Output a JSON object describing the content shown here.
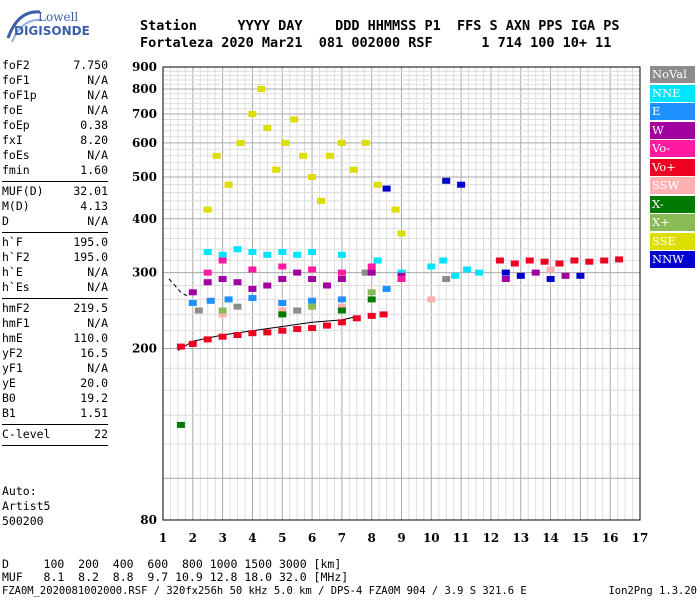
{
  "logo": {
    "brand": "Lowell",
    "name": "DIGISONDE"
  },
  "header": {
    "labels_line": "Station     YYYY DAY    DDD HHMMSS P1  FFS S AXN PPS IGA PS",
    "values_line": "Fortaleza 2020 Mar21  081 002000 RSF      1 714 100 10+ 11"
  },
  "params_group1": [
    {
      "label": "foF2",
      "value": "7.750"
    },
    {
      "label": "foF1",
      "value": "N/A"
    },
    {
      "label": "foF1p",
      "value": "N/A"
    },
    {
      "label": "foE",
      "value": "N/A"
    },
    {
      "label": "foEp",
      "value": "0.38"
    },
    {
      "label": "fxI",
      "value": "8.20"
    },
    {
      "label": "foEs",
      "value": "N/A"
    },
    {
      "label": "fmin",
      "value": "1.60"
    }
  ],
  "params_group2": [
    {
      "label": "MUF(D)",
      "value": "32.01"
    },
    {
      "label": "M(D)",
      "value": "4.13"
    },
    {
      "label": "D",
      "value": "N/A"
    }
  ],
  "params_group3": [
    {
      "label": "h`F",
      "value": "195.0"
    },
    {
      "label": "h`F2",
      "value": "195.0"
    },
    {
      "label": "h`E",
      "value": "N/A"
    },
    {
      "label": "h`Es",
      "value": "N/A"
    }
  ],
  "params_group4": [
    {
      "label": "hmF2",
      "value": "219.5"
    },
    {
      "label": "hmF1",
      "value": "N/A"
    },
    {
      "label": "hmE",
      "value": "110.0"
    },
    {
      "label": "yF2",
      "value": "16.5"
    },
    {
      "label": "yF1",
      "value": "N/A"
    },
    {
      "label": "yE",
      "value": "20.0"
    },
    {
      "label": "B0",
      "value": "19.2"
    },
    {
      "label": "B1",
      "value": "1.51"
    }
  ],
  "params_group5": [
    {
      "label": "C-level",
      "value": "22"
    }
  ],
  "auto": {
    "line1": "Auto:",
    "line2": "Artist5",
    "line3": "500200"
  },
  "legend": [
    {
      "label": "NoVal",
      "color": "#8c8c8c"
    },
    {
      "label": "NNE",
      "color": "#00e5ff"
    },
    {
      "label": "E",
      "color": "#1e90ff"
    },
    {
      "label": "W",
      "color": "#a000a0"
    },
    {
      "label": "Vo-",
      "color": "#ff1aa0"
    },
    {
      "label": "Vo+",
      "color": "#ee0022"
    },
    {
      "label": "SSW",
      "color": "#ffb0b0"
    },
    {
      "label": "X-",
      "color": "#007a00"
    },
    {
      "label": "X+",
      "color": "#88bb55"
    },
    {
      "label": "SSE",
      "color": "#dddd00"
    },
    {
      "label": "NNW",
      "color": "#0000cc"
    }
  ],
  "d_table": {
    "d_line": "D     100  200  400  600  800 1000 1500 3000 [km]",
    "muf_line": "MUF   8.1  8.2  8.8  9.7 10.9 12.8 18.0 32.0 [MHz]"
  },
  "footer": {
    "info": "FZA0M_2020081002000.RSF / 320fx256h 50 kHz 5.0 km / DPS-4 FZA0M 904 / 3.9 S 321.6 E",
    "version": "Ion2Png 1.3.20"
  },
  "chart_data": {
    "type": "scatter",
    "title": "",
    "xlabel": "",
    "ylabel": "",
    "xlim": [
      1,
      17
    ],
    "ylim": [
      80,
      900
    ],
    "y_scale": "log",
    "x_ticks": [
      "1",
      "2",
      "3",
      "4",
      "5",
      "6",
      "7",
      "8",
      "9",
      "10",
      "11",
      "12",
      "13",
      "14",
      "15",
      "16",
      "17"
    ],
    "y_ticks": [
      "80",
      "200",
      "300",
      "400",
      "500",
      "600",
      "700",
      "800",
      "900"
    ],
    "grid": true,
    "legend_position": "right",
    "series": [
      {
        "name": "NoVal",
        "color": "#8c8c8c",
        "points": [
          [
            2.2,
            245
          ],
          [
            3.5,
            250
          ],
          [
            5.5,
            245
          ],
          [
            7.8,
            300
          ],
          [
            10.5,
            290
          ]
        ]
      },
      {
        "name": "NNE",
        "color": "#00e5ff",
        "points": [
          [
            2.5,
            335
          ],
          [
            3,
            330
          ],
          [
            3.5,
            340
          ],
          [
            4,
            335
          ],
          [
            4.5,
            330
          ],
          [
            5,
            335
          ],
          [
            5.5,
            330
          ],
          [
            6,
            335
          ],
          [
            7,
            330
          ],
          [
            8.2,
            320
          ],
          [
            9,
            300
          ],
          [
            10,
            310
          ],
          [
            10.4,
            320
          ],
          [
            10.8,
            295
          ],
          [
            11.2,
            305
          ],
          [
            11.6,
            300
          ]
        ]
      },
      {
        "name": "E",
        "color": "#1e90ff",
        "points": [
          [
            2,
            255
          ],
          [
            2.6,
            258
          ],
          [
            3.2,
            260
          ],
          [
            4,
            262
          ],
          [
            5,
            255
          ],
          [
            6,
            258
          ],
          [
            7,
            260
          ],
          [
            8.5,
            275
          ]
        ]
      },
      {
        "name": "W",
        "color": "#a000a0",
        "points": [
          [
            2,
            270
          ],
          [
            2.5,
            285
          ],
          [
            3,
            290
          ],
          [
            3.5,
            285
          ],
          [
            4,
            275
          ],
          [
            4.5,
            280
          ],
          [
            5,
            290
          ],
          [
            5.5,
            300
          ],
          [
            6,
            290
          ],
          [
            6.5,
            280
          ],
          [
            7,
            290
          ],
          [
            8,
            300
          ],
          [
            9,
            295
          ],
          [
            12.5,
            290
          ],
          [
            13.5,
            300
          ],
          [
            14.5,
            295
          ]
        ]
      },
      {
        "name": "Vo-",
        "color": "#ff1aa0",
        "points": [
          [
            2.5,
            300
          ],
          [
            3,
            320
          ],
          [
            4,
            305
          ],
          [
            5,
            310
          ],
          [
            6,
            305
          ],
          [
            7,
            300
          ],
          [
            8,
            310
          ],
          [
            9,
            290
          ]
        ]
      },
      {
        "name": "Vo+",
        "color": "#ee0022",
        "points": [
          [
            1.6,
            202
          ],
          [
            2,
            205
          ],
          [
            2.5,
            210
          ],
          [
            3,
            213
          ],
          [
            3.5,
            215
          ],
          [
            4,
            217
          ],
          [
            4.5,
            218
          ],
          [
            5,
            220
          ],
          [
            5.5,
            222
          ],
          [
            6,
            223
          ],
          [
            6.5,
            226
          ],
          [
            7,
            230
          ],
          [
            7.5,
            235
          ],
          [
            8,
            238
          ],
          [
            8.4,
            240
          ],
          [
            12.3,
            320
          ],
          [
            12.8,
            315
          ],
          [
            13.3,
            320
          ],
          [
            13.8,
            318
          ],
          [
            14.3,
            315
          ],
          [
            14.8,
            320
          ],
          [
            15.3,
            318
          ],
          [
            15.8,
            320
          ],
          [
            16.3,
            322
          ]
        ]
      },
      {
        "name": "SSW",
        "color": "#ffb0b0",
        "points": [
          [
            3,
            240
          ],
          [
            5,
            245
          ],
          [
            7,
            250
          ],
          [
            10,
            260
          ],
          [
            12.5,
            300
          ],
          [
            14,
            305
          ]
        ]
      },
      {
        "name": "X-",
        "color": "#007a00",
        "points": [
          [
            1.6,
            133
          ],
          [
            5,
            240
          ],
          [
            7,
            245
          ],
          [
            8,
            260
          ]
        ]
      },
      {
        "name": "X+",
        "color": "#88bb55",
        "points": [
          [
            3,
            245
          ],
          [
            6,
            250
          ],
          [
            8,
            270
          ]
        ]
      },
      {
        "name": "SSE",
        "color": "#dddd00",
        "points": [
          [
            2.5,
            420
          ],
          [
            2.8,
            560
          ],
          [
            3.2,
            480
          ],
          [
            3.6,
            600
          ],
          [
            4,
            700
          ],
          [
            4.3,
            800
          ],
          [
            4.5,
            650
          ],
          [
            4.8,
            520
          ],
          [
            5.1,
            600
          ],
          [
            5.4,
            680
          ],
          [
            5.7,
            560
          ],
          [
            6,
            500
          ],
          [
            6.3,
            440
          ],
          [
            6.6,
            560
          ],
          [
            7,
            600
          ],
          [
            7.4,
            520
          ],
          [
            7.8,
            600
          ],
          [
            8.2,
            480
          ],
          [
            8.8,
            420
          ],
          [
            9,
            370
          ]
        ]
      },
      {
        "name": "NNW",
        "color": "#0000cc",
        "points": [
          [
            8.5,
            470
          ],
          [
            10.5,
            490
          ],
          [
            11,
            480
          ],
          [
            12.5,
            300
          ],
          [
            13,
            295
          ],
          [
            14,
            290
          ],
          [
            15,
            295
          ]
        ]
      }
    ],
    "trace_upper": [
      [
        1.2,
        290
      ],
      [
        1.4,
        280
      ],
      [
        1.6,
        270
      ],
      [
        1.8,
        265
      ]
    ],
    "trace_lower": [
      [
        1.5,
        198
      ],
      [
        2,
        208
      ],
      [
        3,
        215
      ],
      [
        4,
        220
      ],
      [
        5,
        225
      ],
      [
        6,
        230
      ],
      [
        7,
        233
      ],
      [
        7.6,
        238
      ]
    ]
  }
}
